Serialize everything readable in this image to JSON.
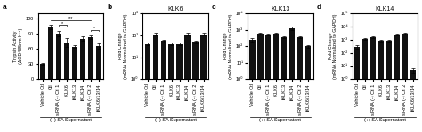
{
  "chart_data": [
    {
      "type": "bar",
      "panel_label": "a",
      "y_label": "Trypsin Activity\n(ΔOD435nm h⁻¹)",
      "x_label": "(+) SA Supernatant",
      "categories": [
        "Vehicle Ctl",
        "Ctl",
        "siRNA (-) Ctl 1",
        "iKLK6",
        "iKLK13",
        "iKLK14",
        "siRNA (-) Ctl 2",
        "iKLK6/13/14"
      ],
      "values": [
        30,
        103,
        90,
        72,
        64,
        80,
        83,
        65
      ],
      "errors": [
        2,
        5,
        5,
        9,
        3,
        4,
        4,
        5
      ],
      "ylim": [
        0,
        130
      ],
      "yticks": [
        0,
        30,
        60,
        90,
        120
      ],
      "color": "#111111",
      "annotations": [
        {
          "text": "*",
          "from": "siRNA (-) Ctl 1",
          "to": "iKLK6",
          "y": 105
        },
        {
          "text": "***",
          "from": "Ctl",
          "to": "siRNA (-) Ctl 2",
          "y": 115
        },
        {
          "text": "*",
          "from": "siRNA (-) Ctl 2",
          "to": "iKLK6/13/14",
          "y": 95
        }
      ]
    },
    {
      "type": "bar",
      "panel_label": "b",
      "title": "KLK6",
      "y_label": "Fold Change\n(mRNA Normalized to GAPDH)",
      "x_label": "(+) SA Supernatant",
      "categories": [
        "Vehicle Ctl",
        "Ctl",
        "siRNA (-) Ctl 1",
        "iKLK6",
        "iKLK13",
        "iKLK14",
        "siRNA (-) Ctl 2",
        "iKLK6/13/14"
      ],
      "values": [
        40,
        110,
        55,
        40,
        40,
        110,
        50,
        110
      ],
      "errors": [
        5,
        15,
        8,
        5,
        5,
        15,
        7,
        15
      ],
      "log": "y",
      "ylim": [
        1,
        1000
      ],
      "yticks": [
        {
          "value": 1,
          "label": "10⁰"
        },
        {
          "value": 10,
          "label": "10¹"
        },
        {
          "value": 100,
          "label": "10²"
        },
        {
          "value": 1000,
          "label": "10³"
        }
      ],
      "color": "#111111"
    },
    {
      "type": "bar",
      "panel_label": "c",
      "title": "KLK13",
      "y_label": "Fold Change\n(mRNA Normalized to GAPDH)",
      "x_label": "(+) SA Supernatant",
      "categories": [
        "Vehicle Ctl",
        "Ctl",
        "siRNA (-) Ctl 1",
        "iKLK6",
        "iKLK13",
        "iKLK14",
        "siRNA (-) Ctl 2",
        "iKLK6/13/14"
      ],
      "values": [
        250,
        600,
        500,
        600,
        350,
        1200,
        350,
        100
      ],
      "errors": [
        60,
        80,
        70,
        80,
        50,
        300,
        50,
        20
      ],
      "log": "y",
      "ylim": [
        1,
        10000
      ],
      "yticks": [
        {
          "value": 1,
          "label": "10⁰"
        },
        {
          "value": 10,
          "label": "10¹"
        },
        {
          "value": 100,
          "label": "10²"
        },
        {
          "value": 1000,
          "label": "10³"
        },
        {
          "value": 10000,
          "label": "10⁴"
        }
      ],
      "color": "#111111"
    },
    {
      "type": "bar",
      "panel_label": "d",
      "title": "KLK14",
      "y_label": "Fold Change\n(mRNA Normalized to GAPDH)",
      "x_label": "(+) SA Supernatant",
      "categories": [
        "Vehicle Ctl",
        "Ctl",
        "siRNA (-) Ctl 1",
        "iKLK6",
        "iKLK13",
        "iKLK14",
        "siRNA (-) Ctl 2",
        "iKLK6/13/14"
      ],
      "values": [
        280,
        1200,
        1500,
        800,
        800,
        2500,
        3000,
        5
      ],
      "errors": [
        80,
        200,
        200,
        120,
        120,
        400,
        500,
        2
      ],
      "log": "y",
      "ylim": [
        1,
        100000
      ],
      "yticks": [
        {
          "value": 1,
          "label": "10⁰"
        },
        {
          "value": 10,
          "label": "10¹"
        },
        {
          "value": 100,
          "label": "10²"
        },
        {
          "value": 1000,
          "label": "10³"
        },
        {
          "value": 10000,
          "label": "10⁴"
        },
        {
          "value": 100000,
          "label": "10⁵"
        }
      ],
      "color": "#111111"
    }
  ]
}
